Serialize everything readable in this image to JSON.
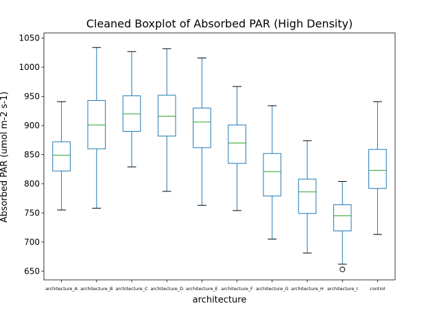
{
  "chart_data": {
    "type": "box",
    "title": "Cleaned Boxplot of Absorbed PAR (High Density)",
    "xlabel": "architecture",
    "ylabel": "Absorbed PAR (umol m-2 s-1)",
    "ylim": [
      635,
      1059
    ],
    "yticks": [
      650,
      700,
      750,
      800,
      850,
      900,
      950,
      1000,
      1050
    ],
    "categories": [
      "architecture_A",
      "architecture_B",
      "architecture_C",
      "architecture_D",
      "architecture_E",
      "architecture_F",
      "architecture_G",
      "architecture_H",
      "architecture_I",
      "control"
    ],
    "boxes": [
      {
        "whisker_low": 755,
        "q1": 822,
        "median": 849,
        "q3": 872,
        "whisker_high": 941,
        "outliers": []
      },
      {
        "whisker_low": 758,
        "q1": 860,
        "median": 901,
        "q3": 943,
        "whisker_high": 1034,
        "outliers": []
      },
      {
        "whisker_low": 829,
        "q1": 890,
        "median": 920,
        "q3": 951,
        "whisker_high": 1027,
        "outliers": []
      },
      {
        "whisker_low": 787,
        "q1": 882,
        "median": 916,
        "q3": 952,
        "whisker_high": 1032,
        "outliers": []
      },
      {
        "whisker_low": 763,
        "q1": 862,
        "median": 906,
        "q3": 930,
        "whisker_high": 1016,
        "outliers": []
      },
      {
        "whisker_low": 754,
        "q1": 835,
        "median": 870,
        "q3": 901,
        "whisker_high": 967,
        "outliers": []
      },
      {
        "whisker_low": 705,
        "q1": 779,
        "median": 821,
        "q3": 852,
        "whisker_high": 934,
        "outliers": []
      },
      {
        "whisker_low": 681,
        "q1": 749,
        "median": 786,
        "q3": 808,
        "whisker_high": 874,
        "outliers": []
      },
      {
        "whisker_low": 662,
        "q1": 719,
        "median": 745,
        "q3": 764,
        "whisker_high": 804,
        "outliers": [
          653
        ]
      },
      {
        "whisker_low": 713,
        "q1": 792,
        "median": 823,
        "q3": 859,
        "whisker_high": 941,
        "outliers": []
      }
    ],
    "colors": {
      "box": "#1f77b4",
      "median": "#2ca02c",
      "outlier": "#000000"
    },
    "grid": false,
    "legend": "none"
  }
}
